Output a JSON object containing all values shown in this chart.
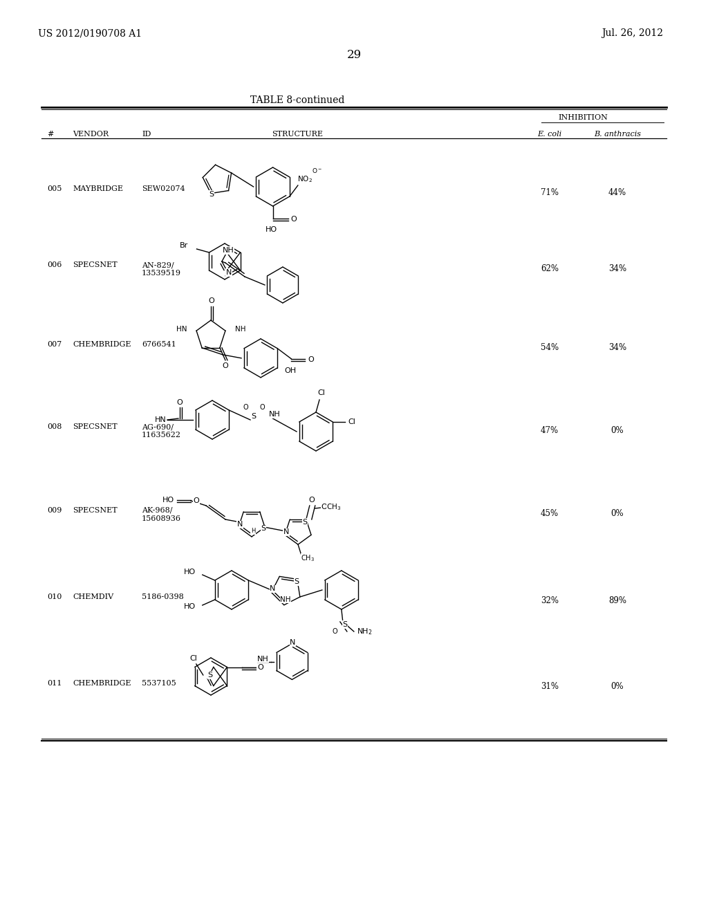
{
  "patent_number": "US 2012/0190708 A1",
  "date": "Jul. 26, 2012",
  "page_number": "29",
  "table_title": "TABLE 8-continued",
  "inhibition_header": "INHIBITION",
  "col_hash": "#",
  "col_vendor": "VENDOR",
  "col_id": "ID",
  "col_structure": "STRUCTURE",
  "col_ecoli": "E. coli",
  "col_banthracis": "B. anthracis",
  "rows": [
    {
      "num": "005",
      "vendor": "MAYBRIDGE",
      "id": "SEW02074",
      "ecoli": "71%",
      "banthracis": "44%"
    },
    {
      "num": "006",
      "vendor": "SPECSNET",
      "id": "AN-829/\n13539519",
      "ecoli": "62%",
      "banthracis": "34%"
    },
    {
      "num": "007",
      "vendor": "CHEMBRIDGE",
      "id": "6766541",
      "ecoli": "54%",
      "banthracis": "34%"
    },
    {
      "num": "008",
      "vendor": "SPECSNET",
      "id": "AG-690/\n11635622",
      "ecoli": "47%",
      "banthracis": "0%"
    },
    {
      "num": "009",
      "vendor": "SPECSNET",
      "id": "AK-968/\n15608936",
      "ecoli": "45%",
      "banthracis": "0%"
    },
    {
      "num": "010",
      "vendor": "CHEMDIV",
      "id": "5186-0398",
      "ecoli": "32%",
      "banthracis": "89%"
    },
    {
      "num": "011",
      "vendor": "CHEMBRIDGE",
      "id": "5537105",
      "ecoli": "31%",
      "banthracis": "0%"
    }
  ],
  "row_y_centers": [
    268,
    378,
    493,
    612,
    733,
    858,
    983
  ],
  "bg_color": "#ffffff",
  "text_color": "#000000"
}
